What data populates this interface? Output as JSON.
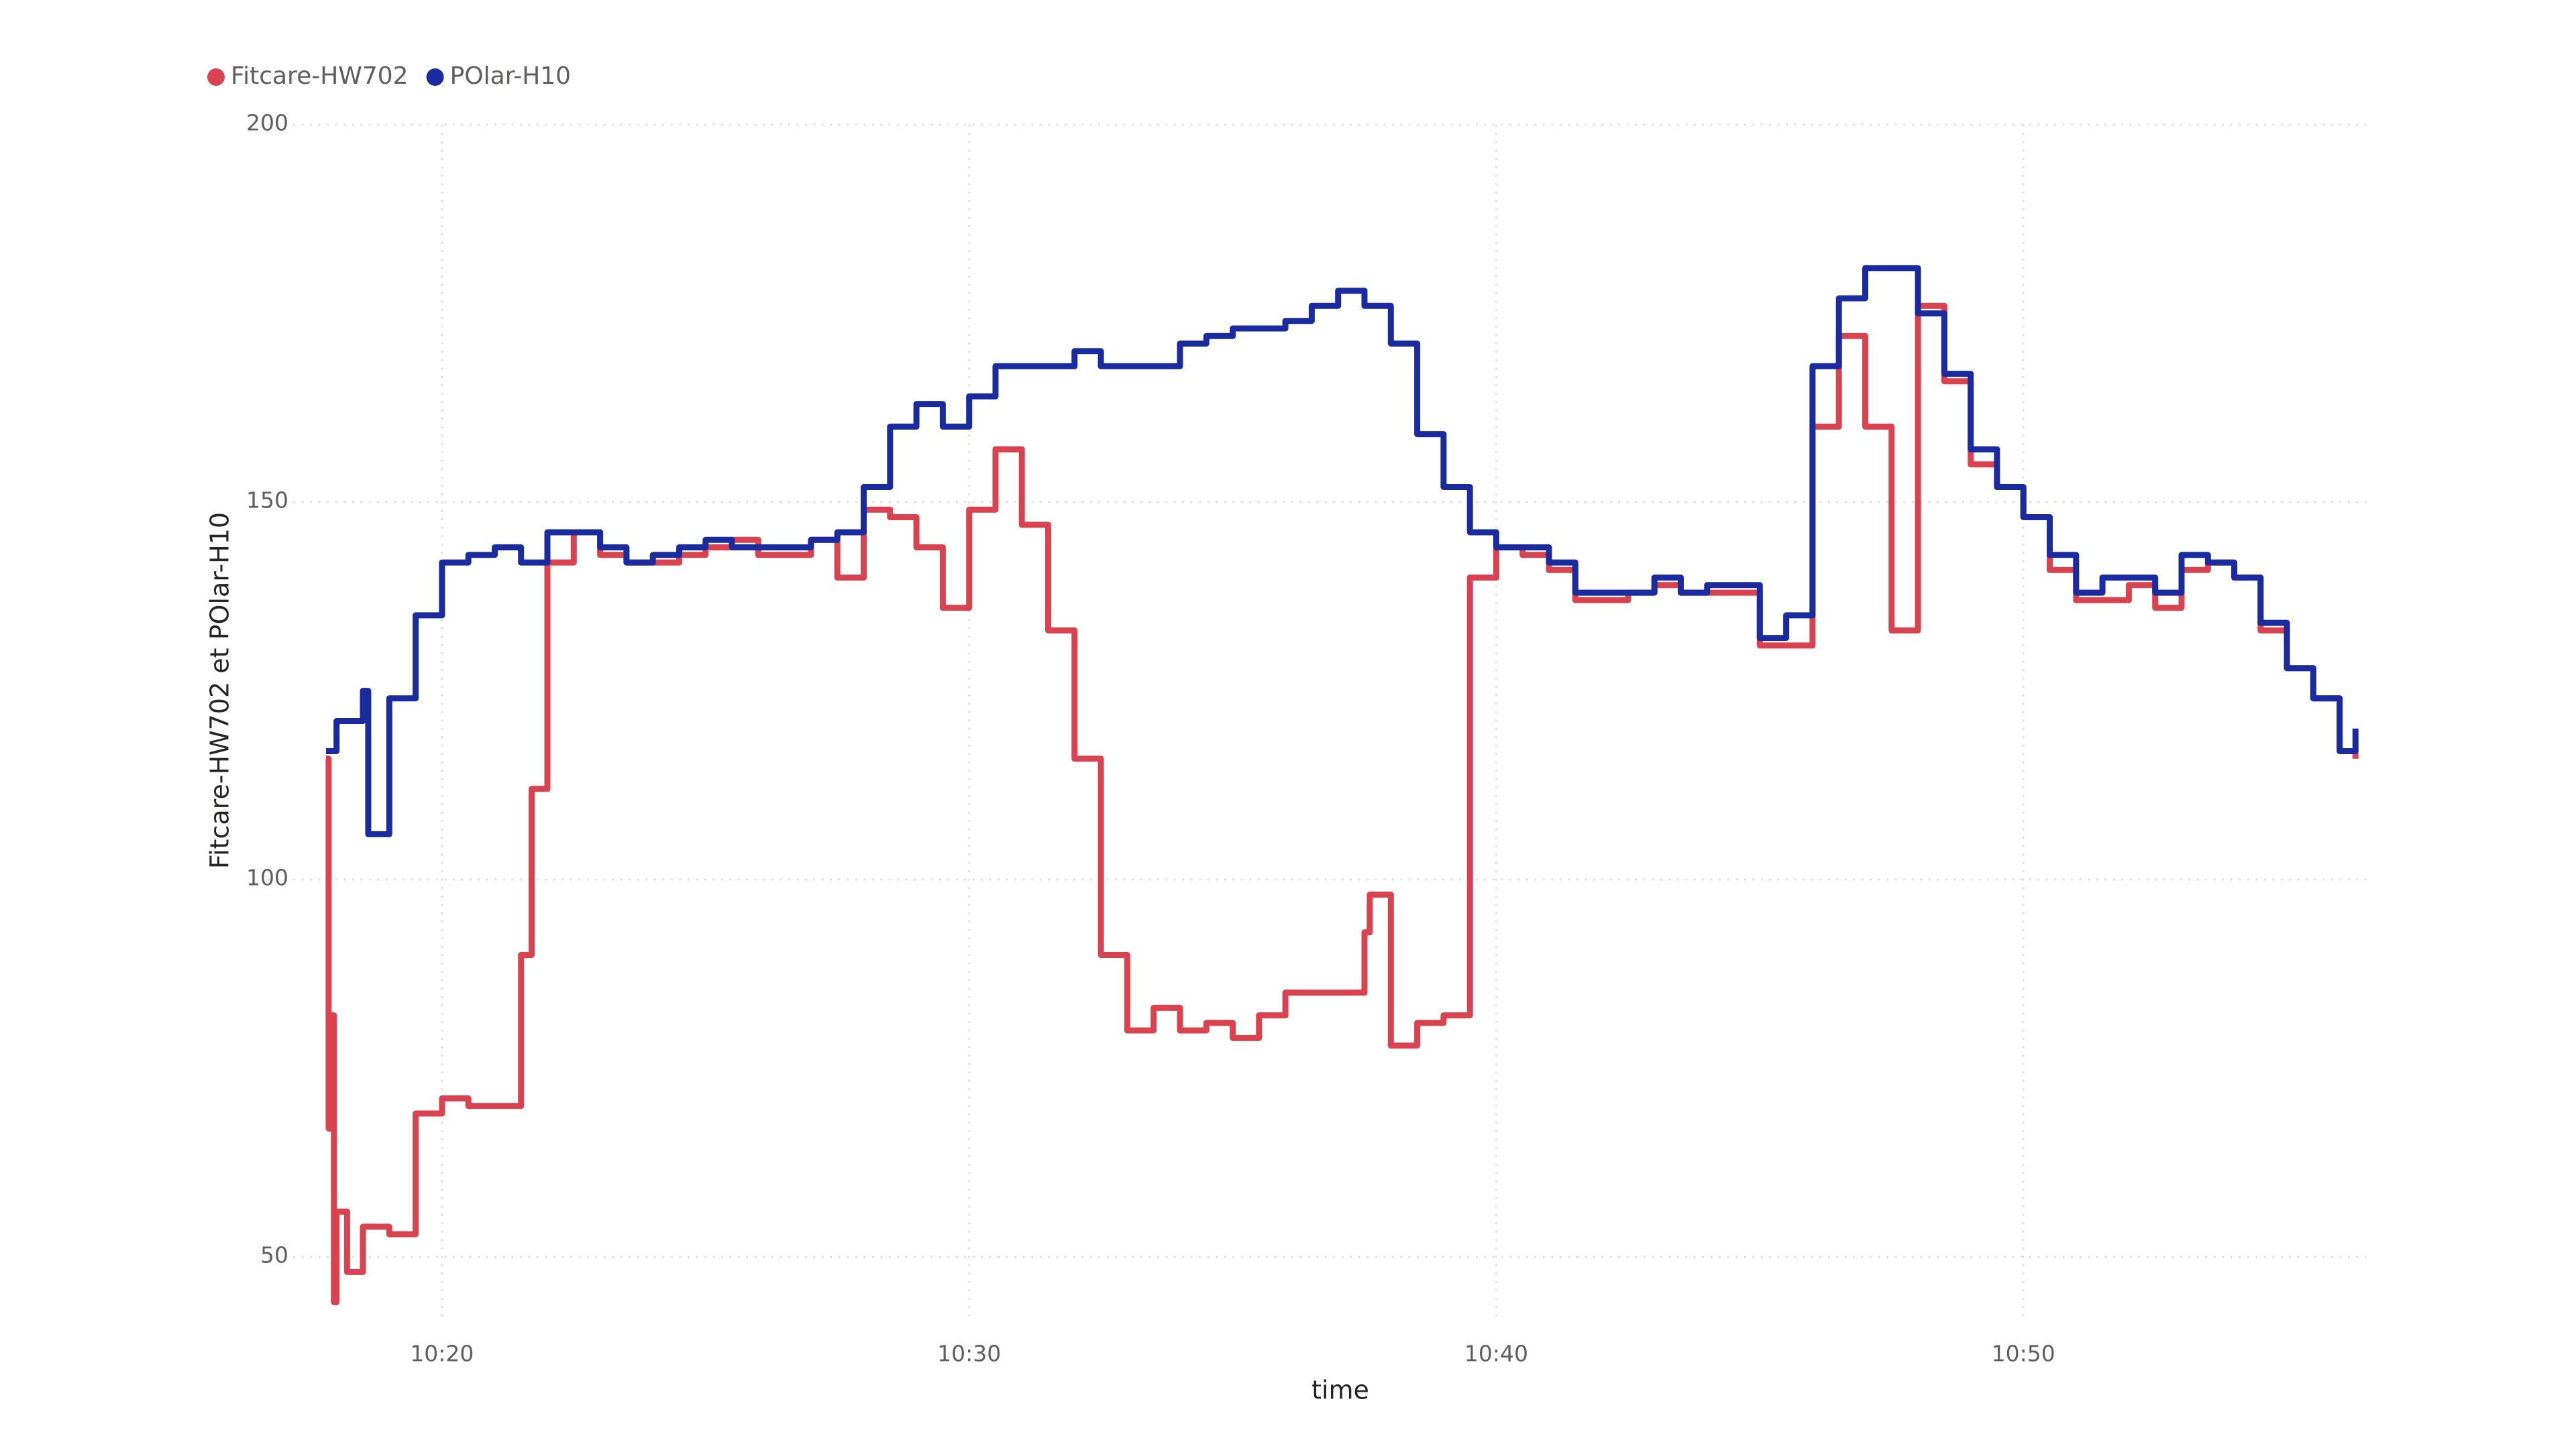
{
  "chart_data": {
    "type": "line",
    "x_label": "time",
    "y_label": "Fitcare-HW702 et POlar-H10",
    "legend": "top-left",
    "grid": true,
    "xlim": [
      17.8,
      56.5
    ],
    "ylim": [
      42,
      200
    ],
    "xticks": [
      {
        "value": 20,
        "label": "10:20"
      },
      {
        "value": 30,
        "label": "10:30"
      },
      {
        "value": 40,
        "label": "10:40"
      },
      {
        "value": 50,
        "label": "10:50"
      }
    ],
    "yticks": [
      50,
      100,
      150,
      200
    ],
    "series": [
      {
        "name": "Fitcare-HW702",
        "color": "#d8434f",
        "x": [
          17.8,
          17.85,
          17.9,
          17.95,
          18.0,
          18.2,
          18.5,
          19.0,
          19.5,
          20.0,
          20.5,
          21.0,
          21.5,
          21.7,
          22.0,
          22.5,
          23.0,
          23.5,
          24.0,
          24.5,
          25.0,
          25.5,
          26.0,
          26.5,
          27.0,
          27.5,
          28.0,
          28.5,
          29.0,
          29.5,
          30.0,
          30.5,
          31.0,
          31.5,
          32.0,
          32.5,
          33.0,
          33.5,
          34.0,
          34.5,
          35.0,
          35.5,
          36.0,
          36.5,
          37.0,
          37.5,
          37.6,
          38.0,
          38.5,
          39.0,
          39.3,
          39.5,
          40.0,
          40.5,
          41.0,
          41.5,
          42.0,
          42.5,
          43.0,
          43.5,
          44.0,
          44.5,
          45.0,
          45.5,
          46.0,
          46.5,
          47.0,
          47.5,
          48.0,
          48.5,
          49.0,
          49.5,
          50.0,
          50.5,
          51.0,
          51.5,
          52.0,
          52.5,
          53.0,
          53.5,
          54.0,
          54.5,
          55.0,
          55.5,
          56.0,
          56.3
        ],
        "values": [
          116,
          67,
          82,
          44,
          56,
          48,
          54,
          53,
          69,
          71,
          70,
          70,
          90,
          112,
          142,
          146,
          143,
          142,
          142,
          143,
          144,
          145,
          143,
          143,
          145,
          140,
          149,
          148,
          144,
          136,
          149,
          157,
          147,
          133,
          116,
          90,
          80,
          83,
          80,
          81,
          79,
          82,
          85,
          85,
          85,
          93,
          98,
          78,
          81,
          82,
          82,
          140,
          144,
          143,
          141,
          137,
          137,
          138,
          139,
          138,
          138,
          138,
          131,
          131,
          160,
          172,
          160,
          133,
          176,
          166,
          155,
          152,
          148,
          141,
          137,
          137,
          139,
          136,
          141,
          142,
          140,
          133,
          128,
          124,
          117,
          116
        ]
      },
      {
        "name": "POlar-H10",
        "color": "#1a2b9f",
        "x": [
          17.8,
          18.0,
          18.5,
          18.6,
          19.0,
          19.5,
          20.0,
          20.5,
          21.0,
          21.5,
          22.0,
          22.5,
          23.0,
          23.5,
          24.0,
          24.5,
          25.0,
          25.5,
          26.0,
          26.5,
          27.0,
          27.5,
          28.0,
          28.5,
          29.0,
          29.5,
          30.0,
          30.5,
          31.0,
          31.5,
          32.0,
          32.5,
          33.0,
          33.5,
          34.0,
          34.5,
          35.0,
          35.5,
          36.0,
          36.5,
          37.0,
          37.5,
          38.0,
          38.5,
          39.0,
          39.5,
          40.0,
          40.5,
          41.0,
          41.5,
          42.0,
          42.5,
          43.0,
          43.5,
          44.0,
          44.5,
          45.0,
          45.5,
          46.0,
          46.5,
          47.0,
          47.5,
          48.0,
          48.5,
          49.0,
          49.5,
          50.0,
          50.5,
          51.0,
          51.5,
          52.0,
          52.5,
          53.0,
          53.5,
          54.0,
          54.5,
          55.0,
          55.5,
          56.0,
          56.3
        ],
        "values": [
          117,
          121,
          125,
          106,
          124,
          135,
          142,
          143,
          144,
          142,
          146,
          146,
          144,
          142,
          143,
          144,
          145,
          144,
          144,
          144,
          145,
          146,
          152,
          160,
          163,
          160,
          164,
          168,
          168,
          168,
          170,
          168,
          168,
          168,
          171,
          172,
          173,
          173,
          174,
          176,
          178,
          176,
          171,
          159,
          152,
          146,
          144,
          144,
          142,
          138,
          138,
          138,
          140,
          138,
          139,
          139,
          132,
          135,
          168,
          177,
          181,
          181,
          175,
          167,
          157,
          152,
          148,
          143,
          138,
          140,
          140,
          138,
          143,
          142,
          140,
          134,
          128,
          124,
          117,
          120
        ]
      }
    ]
  }
}
